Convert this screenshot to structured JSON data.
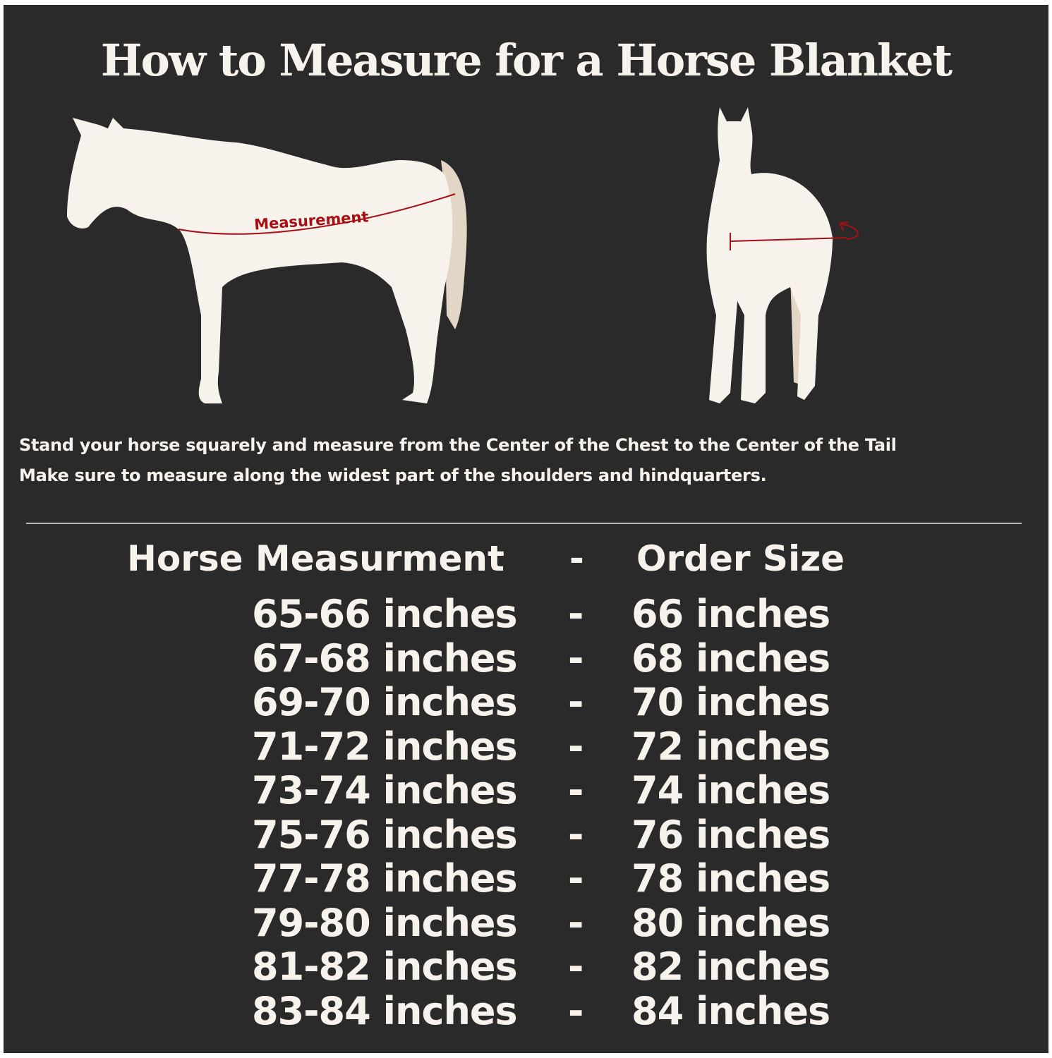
{
  "title": "How to Measure for a Horse Blanket",
  "illustration": {
    "measurement_label": "Measurement"
  },
  "instructions": [
    "Stand your horse squarely and measure from the Center of the Chest to the Center of the Tail",
    "Make sure to measure along the widest part of the shoulders and hindquarters."
  ],
  "table": {
    "headers": {
      "measurement": "Horse Measurment",
      "separator": "-",
      "size": "Order Size"
    },
    "rows": [
      {
        "measurement": "65-66 inches",
        "separator": "-",
        "size": "66 inches"
      },
      {
        "measurement": "67-68 inches",
        "separator": "-",
        "size": "68 inches"
      },
      {
        "measurement": "69-70 inches",
        "separator": "-",
        "size": "70 inches"
      },
      {
        "measurement": "71-72 inches",
        "separator": "-",
        "size": "72 inches"
      },
      {
        "measurement": "73-74 inches",
        "separator": "-",
        "size": "74 inches"
      },
      {
        "measurement": "75-76 inches",
        "separator": "-",
        "size": "76 inches"
      },
      {
        "measurement": "77-78 inches",
        "separator": "-",
        "size": "78 inches"
      },
      {
        "measurement": "79-80 inches",
        "separator": "-",
        "size": "80 inches"
      },
      {
        "measurement": "81-82 inches",
        "separator": "-",
        "size": "82 inches"
      },
      {
        "measurement": "83-84 inches",
        "separator": "-",
        "size": "84 inches"
      }
    ]
  },
  "colors": {
    "background": "#2b2a2b",
    "text": "#f7f3ec",
    "accent": "#a80f14",
    "tail": "#e3d6c6"
  }
}
